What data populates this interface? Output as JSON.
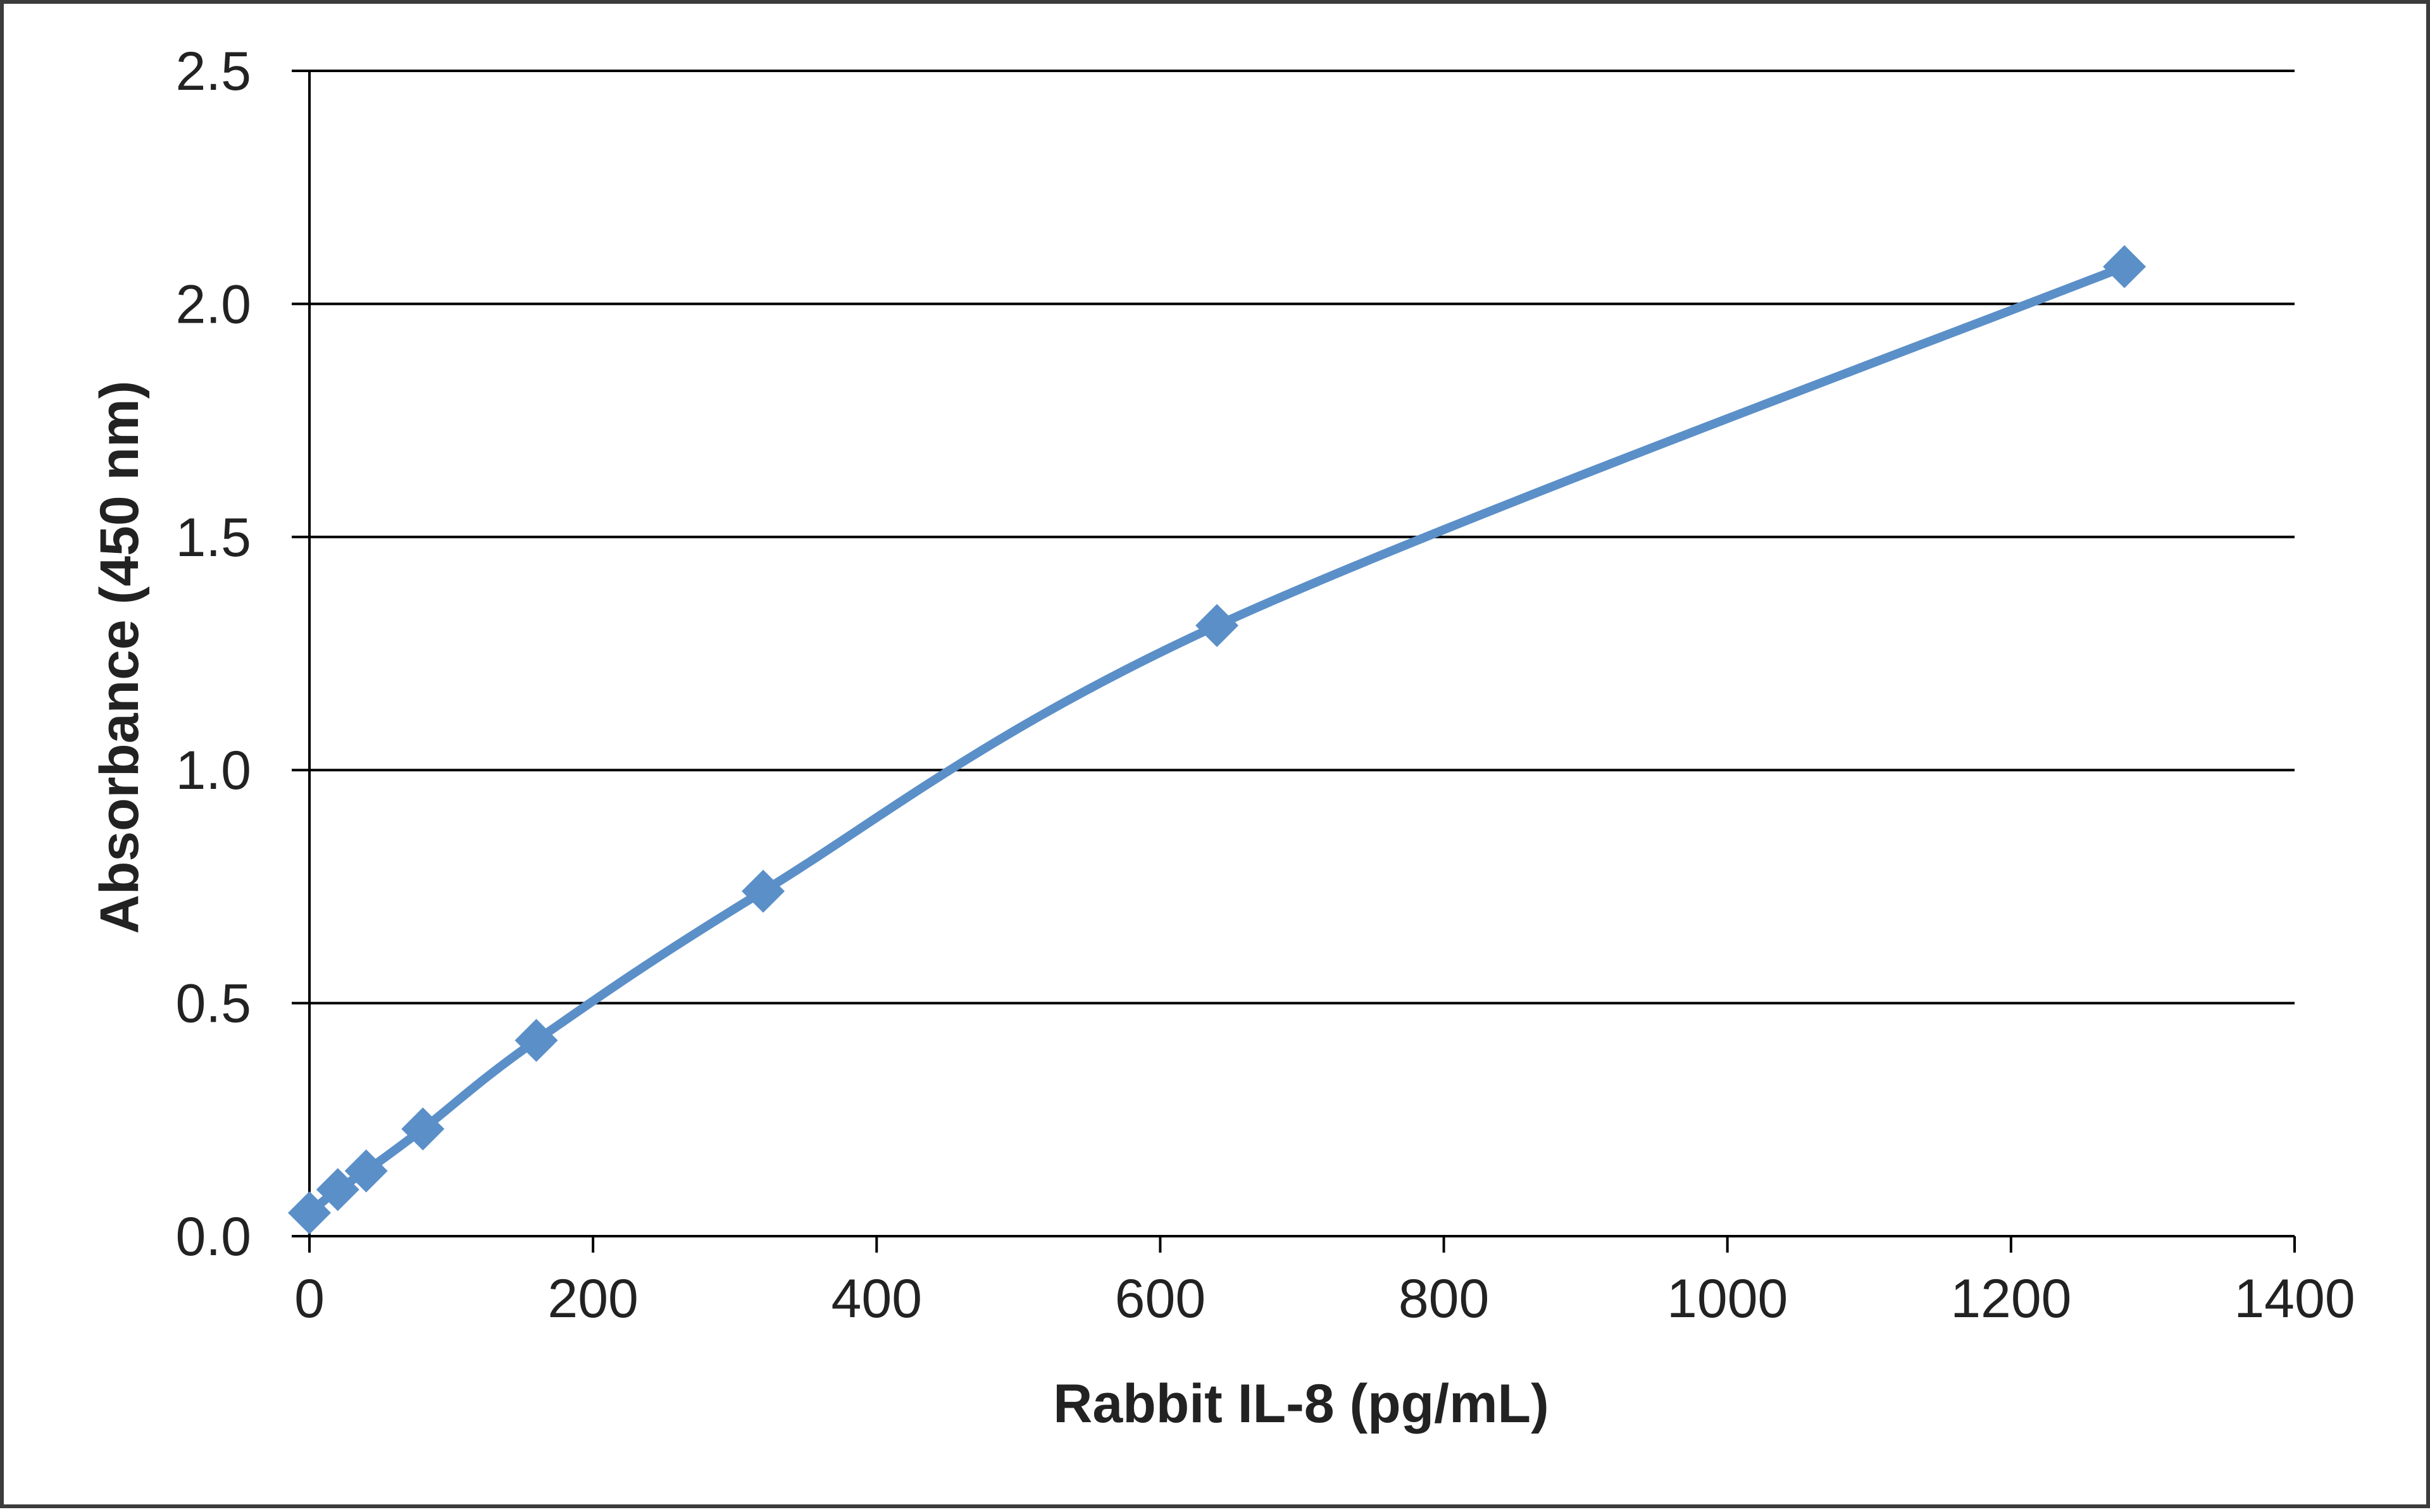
{
  "chart_data": {
    "type": "scatter",
    "title": "",
    "xlabel": "Rabbit IL-8 (pg/mL)",
    "ylabel": "Absorbance  (450  nm)",
    "xlim": [
      0,
      1400
    ],
    "ylim": [
      0,
      2.5
    ],
    "x_ticks": [
      0,
      200,
      400,
      600,
      800,
      1000,
      1200,
      1400
    ],
    "x_tick_labels": [
      "0",
      "200",
      "400",
      "600",
      "800",
      "1000",
      "1200",
      "1400"
    ],
    "y_ticks": [
      0,
      0.5,
      1.0,
      1.5,
      2.0,
      2.5
    ],
    "y_tick_labels": [
      "0.0",
      "0.5",
      "1.0",
      "1.5",
      "2.0",
      "2.5"
    ],
    "grid": "horizontal",
    "legend": "none",
    "marker": "diamond",
    "line": "smooth",
    "series_color": "#5b8fc8",
    "series": [
      {
        "x": [
          0,
          20,
          40,
          80,
          160,
          320,
          640,
          1280
        ],
        "y": [
          0.05,
          0.1,
          0.14,
          0.23,
          0.42,
          0.74,
          1.31,
          2.08
        ]
      }
    ]
  }
}
